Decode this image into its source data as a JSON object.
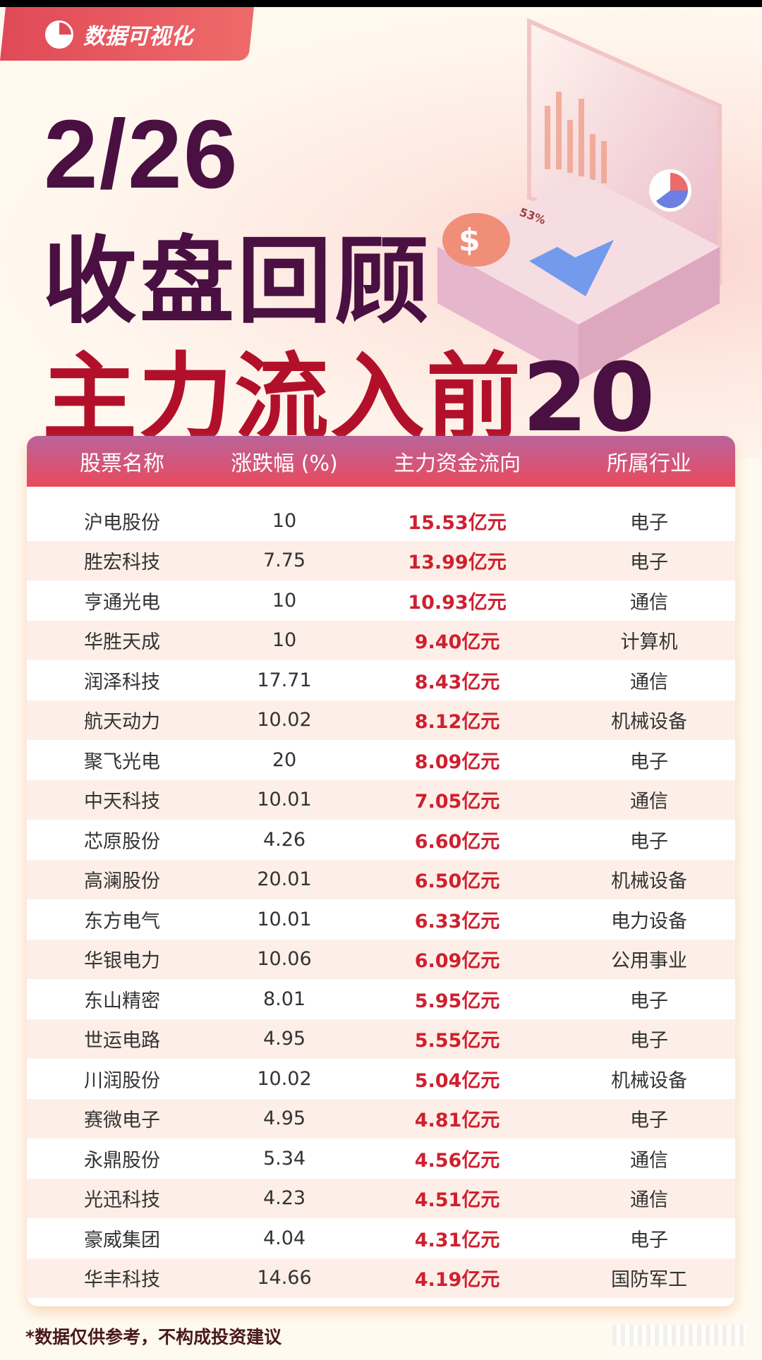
{
  "badge": {
    "label": "数据可视化",
    "icon": "pie-chart-icon"
  },
  "title": {
    "date": "2/26",
    "line2": "收盘回顾",
    "line3_red": "主力流入前",
    "line3_num": "20"
  },
  "illustration": {
    "percent": "53%"
  },
  "table": {
    "headers": [
      "股票名称",
      "涨跌幅 (%)",
      "主力资金流向",
      "所属行业"
    ],
    "rows": [
      [
        "沪电股份",
        "10",
        "15.53亿元",
        "电子"
      ],
      [
        "胜宏科技",
        "7.75",
        "13.99亿元",
        "电子"
      ],
      [
        "亨通光电",
        "10",
        "10.93亿元",
        "通信"
      ],
      [
        "华胜天成",
        "10",
        "9.40亿元",
        "计算机"
      ],
      [
        "润泽科技",
        "17.71",
        "8.43亿元",
        "通信"
      ],
      [
        "航天动力",
        "10.02",
        "8.12亿元",
        "机械设备"
      ],
      [
        "聚飞光电",
        "20",
        "8.09亿元",
        "电子"
      ],
      [
        "中天科技",
        "10.01",
        "7.05亿元",
        "通信"
      ],
      [
        "芯原股份",
        "4.26",
        "6.60亿元",
        "电子"
      ],
      [
        "高澜股份",
        "20.01",
        "6.50亿元",
        "机械设备"
      ],
      [
        "东方电气",
        "10.01",
        "6.33亿元",
        "电力设备"
      ],
      [
        "华银电力",
        "10.06",
        "6.09亿元",
        "公用事业"
      ],
      [
        "东山精密",
        "8.01",
        "5.95亿元",
        "电子"
      ],
      [
        "世运电路",
        "4.95",
        "5.55亿元",
        "电子"
      ],
      [
        "川润股份",
        "10.02",
        "5.04亿元",
        "机械设备"
      ],
      [
        "赛微电子",
        "4.95",
        "4.81亿元",
        "电子"
      ],
      [
        "永鼎股份",
        "5.34",
        "4.56亿元",
        "通信"
      ],
      [
        "光迅科技",
        "4.23",
        "4.51亿元",
        "通信"
      ],
      [
        "豪威集团",
        "4.04",
        "4.31亿元",
        "电子"
      ],
      [
        "华丰科技",
        "14.66",
        "4.19亿元",
        "国防军工"
      ]
    ]
  },
  "footnote": "*数据仅供参考，不构成投资建议",
  "colors": {
    "title": "#4a1042",
    "accent_red": "#b2102a",
    "value_red": "#d01f2e",
    "header_from": "#b9649b",
    "header_to": "#e94a5b"
  }
}
